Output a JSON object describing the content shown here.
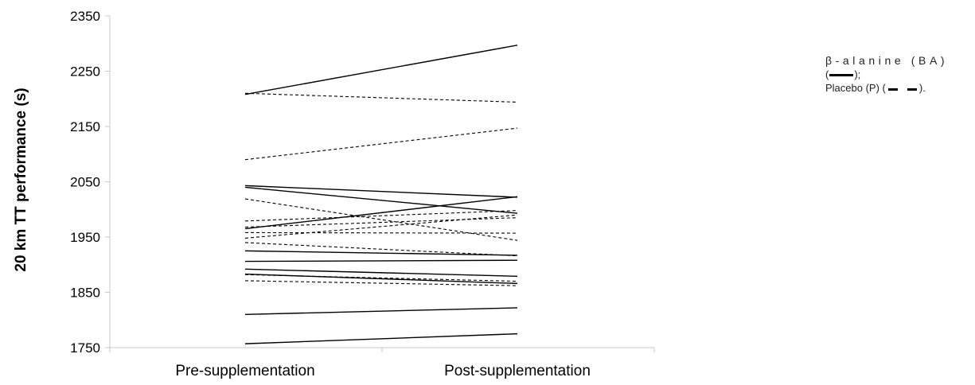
{
  "chart_data": {
    "type": "line",
    "ylabel": "20 km TT performance (s)",
    "categories": [
      "Pre-supplementation",
      "Post-supplementation"
    ],
    "ylim": [
      1750,
      2350
    ],
    "yticks": [
      1750,
      1850,
      1950,
      2050,
      2150,
      2250,
      2350
    ],
    "grid": false,
    "legend_placement": "right",
    "series": [
      {
        "group": "BA",
        "style": "solid",
        "values": [
          2208,
          2297
        ]
      },
      {
        "group": "BA",
        "style": "solid",
        "values": [
          2043,
          2022
        ]
      },
      {
        "group": "BA",
        "style": "solid",
        "values": [
          2040,
          1993
        ]
      },
      {
        "group": "BA",
        "style": "solid",
        "values": [
          1965,
          2023
        ]
      },
      {
        "group": "BA",
        "style": "solid",
        "values": [
          1925,
          1917
        ]
      },
      {
        "group": "BA",
        "style": "solid",
        "values": [
          1906,
          1908
        ]
      },
      {
        "group": "BA",
        "style": "solid",
        "values": [
          1892,
          1879
        ]
      },
      {
        "group": "BA",
        "style": "solid",
        "values": [
          1883,
          1866
        ]
      },
      {
        "group": "BA",
        "style": "solid",
        "values": [
          1810,
          1822
        ]
      },
      {
        "group": "BA",
        "style": "solid",
        "values": [
          1757,
          1775
        ]
      },
      {
        "group": "P",
        "style": "dashed",
        "values": [
          2210,
          2194
        ]
      },
      {
        "group": "P",
        "style": "dashed",
        "values": [
          2090,
          2147
        ]
      },
      {
        "group": "P",
        "style": "dashed",
        "values": [
          2019,
          1944
        ]
      },
      {
        "group": "P",
        "style": "dashed",
        "values": [
          1979,
          1998
        ]
      },
      {
        "group": "P",
        "style": "dashed",
        "values": [
          1968,
          1985
        ]
      },
      {
        "group": "P",
        "style": "dashed",
        "values": [
          1958,
          1957
        ]
      },
      {
        "group": "P",
        "style": "dashed",
        "values": [
          1948,
          1990
        ]
      },
      {
        "group": "P",
        "style": "dashed",
        "values": [
          1940,
          1916
        ]
      },
      {
        "group": "P",
        "style": "dashed",
        "values": [
          1882,
          1870
        ]
      },
      {
        "group": "P",
        "style": "dashed",
        "values": [
          1871,
          1862
        ]
      }
    ]
  },
  "legend": {
    "ba_name": "β-alanine (BA)",
    "ba_open": "(",
    "ba_close": ");",
    "p_name": "Placebo (P) (",
    "p_close": ")."
  },
  "colors": {
    "axis": "#c8c8c8",
    "line": "#000000",
    "red_tint": "#cc2200"
  }
}
